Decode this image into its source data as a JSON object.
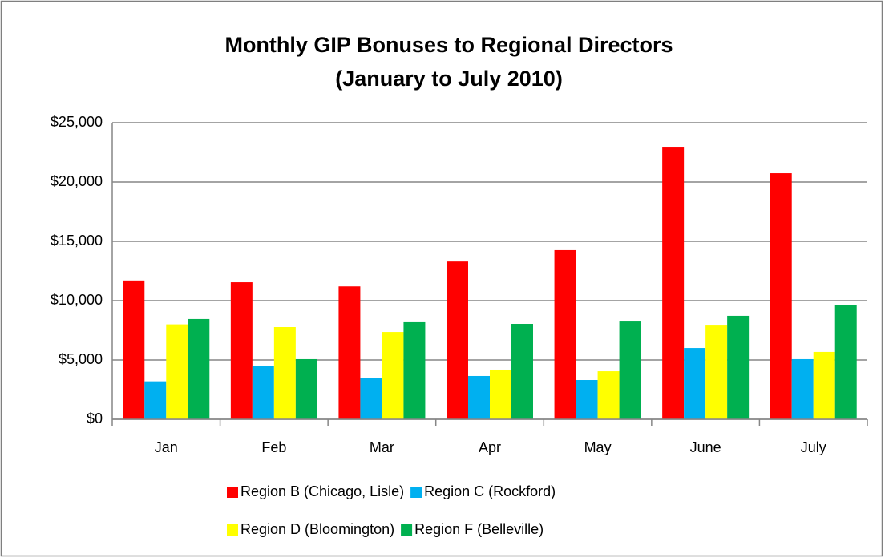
{
  "chart_data": {
    "type": "bar",
    "title": "Monthly GIP Bonuses to Regional Directors",
    "subtitle": "(January to July 2010)",
    "categories": [
      "Jan",
      "Feb",
      "Mar",
      "Apr",
      "May",
      "June",
      "July"
    ],
    "series": [
      {
        "name": "Region B (Chicago, Lisle)",
        "color": "#ff0000",
        "values": [
          11700,
          11550,
          11200,
          13300,
          14260,
          22970,
          20740
        ]
      },
      {
        "name": "Region C (Rockford)",
        "color": "#00b0f0",
        "values": [
          3200,
          4460,
          3500,
          3650,
          3310,
          6010,
          5070
        ]
      },
      {
        "name": "Region D (Bloomington)",
        "color": "#ffff00",
        "values": [
          8000,
          7770,
          7360,
          4190,
          4050,
          7900,
          5680
        ]
      },
      {
        "name": "Region F (Belleville)",
        "color": "#00b050",
        "values": [
          8450,
          5070,
          8180,
          8040,
          8240,
          8720,
          9660
        ]
      }
    ],
    "ylim": [
      0,
      25000
    ],
    "yticks": [
      {
        "value": 0,
        "label": "$0"
      },
      {
        "value": 5000,
        "label": "$5,000"
      },
      {
        "value": 10000,
        "label": "$10,000"
      },
      {
        "value": 15000,
        "label": "$15,000"
      },
      {
        "value": 20000,
        "label": "$20,000"
      },
      {
        "value": 25000,
        "label": "$25,000"
      }
    ],
    "grid": true,
    "legend": "bottom"
  }
}
